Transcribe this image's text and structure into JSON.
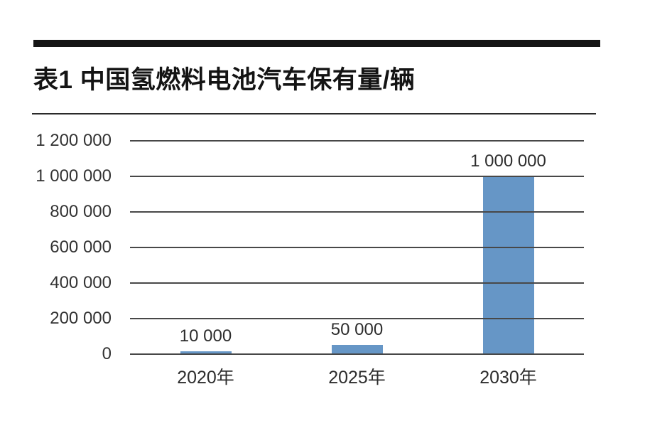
{
  "header": {
    "title": "表1 中国氢燃料电池汽车保有量/辆"
  },
  "colors": {
    "bar": "#6696c6",
    "rule": "#151515",
    "gridline": "#484848",
    "text": "#2d2d2d"
  },
  "chart_data": {
    "type": "bar",
    "title": "表1 中国氢燃料电池汽车保有量/辆",
    "categories": [
      "2020年",
      "2025年",
      "2030年"
    ],
    "values": [
      10000,
      50000,
      1000000
    ],
    "value_labels": [
      "10 000",
      "50 000",
      "1 000 000"
    ],
    "xlabel": "",
    "ylabel": "",
    "ylim": [
      0,
      1200000
    ],
    "ytick_values": [
      0,
      200000,
      400000,
      600000,
      800000,
      1000000,
      1200000
    ],
    "ytick_labels": [
      "0",
      "200 000",
      "400 000",
      "600 000",
      "800 000",
      "1 000 000",
      "1 200 000"
    ],
    "grid": true,
    "legend": false,
    "bar_color": "#6696c6"
  }
}
